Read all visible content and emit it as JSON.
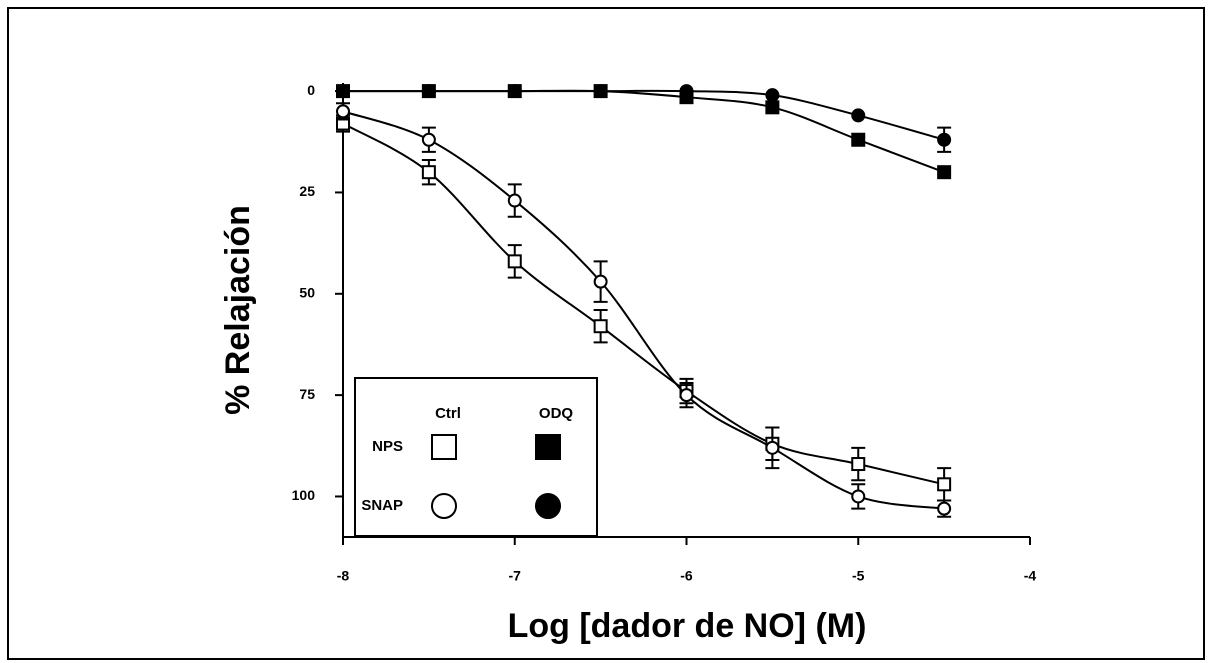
{
  "chart_data": {
    "type": "scatter",
    "x_label": "Log [dador de NO] (M)",
    "y_label": "% Relajación",
    "x": [
      -8,
      -7.5,
      -7,
      -6.5,
      -6,
      -5.5,
      -5,
      -4.5
    ],
    "series": [
      {
        "marker": "square",
        "filled": false,
        "color": "#000000",
        "values": [
          8,
          20,
          42,
          58,
          74,
          87,
          92,
          97
        ],
        "errors": [
          2,
          3,
          4,
          4,
          3,
          4,
          4,
          4
        ]
      },
      {
        "marker": "square",
        "filled": true,
        "color": "#000000",
        "values": [
          0,
          0,
          0,
          0,
          1.5,
          4,
          12,
          20
        ],
        "errors": [
          0,
          0,
          0,
          0,
          0,
          0,
          0,
          0
        ]
      },
      {
        "marker": "circle",
        "filled": false,
        "color": "#000000",
        "values": [
          5,
          12,
          27,
          47,
          75,
          88,
          100,
          103
        ],
        "errors": [
          2,
          3,
          4,
          5,
          3,
          5,
          3,
          2
        ]
      },
      {
        "marker": "circle",
        "filled": true,
        "color": "#000000",
        "values": [
          0,
          0,
          0,
          0,
          0,
          1,
          6,
          12
        ],
        "errors": [
          0,
          0,
          0,
          0,
          0,
          0,
          0,
          3
        ]
      }
    ],
    "legend": {
      "columns": [
        "Ctrl",
        "ODQ"
      ],
      "rows": [
        "NPS",
        "SNAP"
      ]
    },
    "xlim": [
      -8,
      -4
    ],
    "xticks": [
      -8,
      -7,
      -6,
      -5,
      -4
    ],
    "ylim": [
      -2,
      110
    ],
    "yticks": [
      0,
      25,
      50,
      75,
      100
    ],
    "y_inverted": true
  }
}
